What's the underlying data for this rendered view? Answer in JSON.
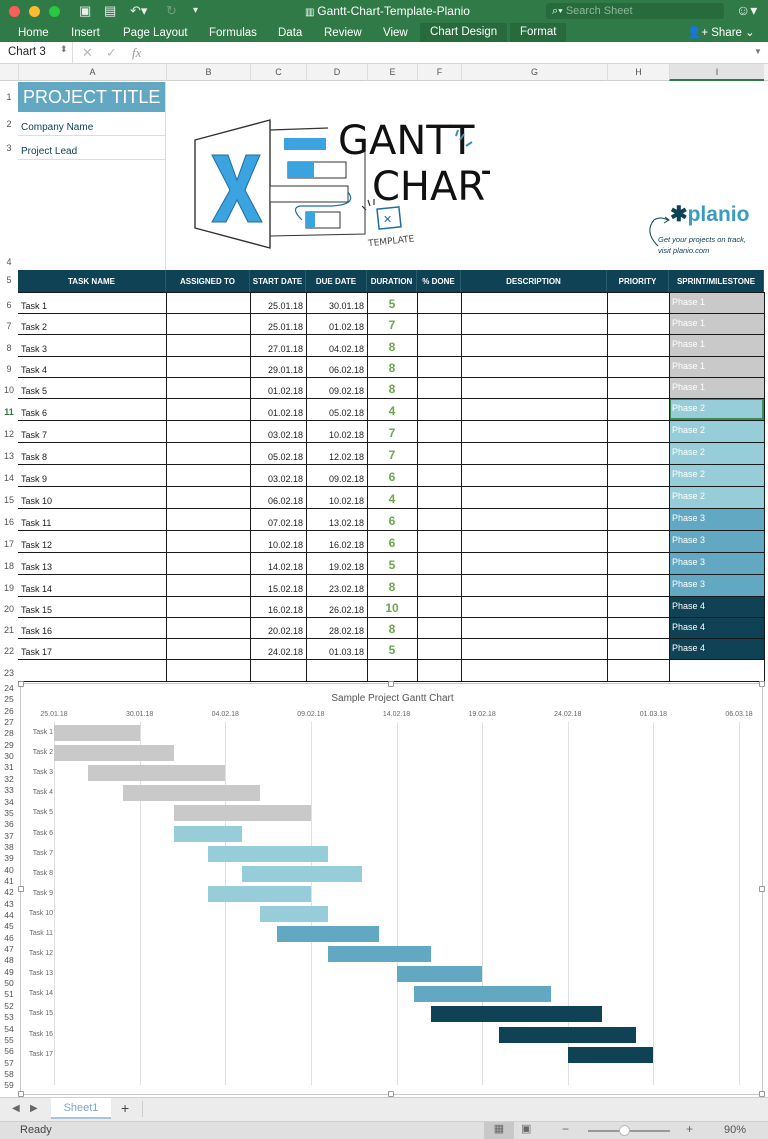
{
  "window": {
    "title": "Gantt-Chart-Template-Planio",
    "search_placeholder": "Search Sheet",
    "share_label": "Share"
  },
  "ribbon": {
    "tabs": [
      "Home",
      "Insert",
      "Page Layout",
      "Formulas",
      "Data",
      "Review",
      "View",
      "Chart Design",
      "Format"
    ],
    "active_tab": "Chart Design"
  },
  "formula_bar": {
    "name_box": "Chart 3",
    "fx": "fx",
    "value": ""
  },
  "columns": [
    "A",
    "B",
    "C",
    "D",
    "E",
    "F",
    "G",
    "H",
    "I"
  ],
  "header": {
    "project_title": "PROJECT TITLE",
    "company_name": "Company Name",
    "project_lead": "Project Lead",
    "logo_gantt": "GANTT",
    "logo_chart": "CHART",
    "logo_template": "TEMPLATE",
    "planio_brand": "planio",
    "planio_tagline1": "Get your projects on track,",
    "planio_tagline2": "visit planio.com"
  },
  "table": {
    "headers": [
      "TASK NAME",
      "ASSIGNED TO",
      "START DATE",
      "DUE DATE",
      "DURATION",
      "% DONE",
      "DESCRIPTION",
      "PRIORITY",
      "SPRINT/MILESTONE"
    ],
    "rows": [
      {
        "task": "Task 1",
        "start": "25.01.18",
        "due": "30.01.18",
        "duration": "5",
        "phase": "Phase 1"
      },
      {
        "task": "Task 2",
        "start": "25.01.18",
        "due": "01.02.18",
        "duration": "7",
        "phase": "Phase 1"
      },
      {
        "task": "Task 3",
        "start": "27.01.18",
        "due": "04.02.18",
        "duration": "8",
        "phase": "Phase 1"
      },
      {
        "task": "Task 4",
        "start": "29.01.18",
        "due": "06.02.18",
        "duration": "8",
        "phase": "Phase 1"
      },
      {
        "task": "Task 5",
        "start": "01.02.18",
        "due": "09.02.18",
        "duration": "8",
        "phase": "Phase 1"
      },
      {
        "task": "Task 6",
        "start": "01.02.18",
        "due": "05.02.18",
        "duration": "4",
        "phase": "Phase 2"
      },
      {
        "task": "Task 7",
        "start": "03.02.18",
        "due": "10.02.18",
        "duration": "7",
        "phase": "Phase 2"
      },
      {
        "task": "Task 8",
        "start": "05.02.18",
        "due": "12.02.18",
        "duration": "7",
        "phase": "Phase 2"
      },
      {
        "task": "Task 9",
        "start": "03.02.18",
        "due": "09.02.18",
        "duration": "6",
        "phase": "Phase 2"
      },
      {
        "task": "Task 10",
        "start": "06.02.18",
        "due": "10.02.18",
        "duration": "4",
        "phase": "Phase 2"
      },
      {
        "task": "Task 11",
        "start": "07.02.18",
        "due": "13.02.18",
        "duration": "6",
        "phase": "Phase 3"
      },
      {
        "task": "Task 12",
        "start": "10.02.18",
        "due": "16.02.18",
        "duration": "6",
        "phase": "Phase 3"
      },
      {
        "task": "Task 13",
        "start": "14.02.18",
        "due": "19.02.18",
        "duration": "5",
        "phase": "Phase 3"
      },
      {
        "task": "Task 14",
        "start": "15.02.18",
        "due": "23.02.18",
        "duration": "8",
        "phase": "Phase 3"
      },
      {
        "task": "Task 15",
        "start": "16.02.18",
        "due": "26.02.18",
        "duration": "10",
        "phase": "Phase 4"
      },
      {
        "task": "Task 16",
        "start": "20.02.18",
        "due": "28.02.18",
        "duration": "8",
        "phase": "Phase 4"
      },
      {
        "task": "Task 17",
        "start": "24.02.18",
        "due": "01.03.18",
        "duration": "5",
        "phase": "Phase 4"
      }
    ]
  },
  "phase_colors": {
    "Phase 1": "#c9c9c9",
    "Phase 2": "#96cdd9",
    "Phase 3": "#62a8c2",
    "Phase 4": "#0f4255"
  },
  "colors": {
    "header_bg": "#0f4255",
    "title_bg": "#62a8c2",
    "accent_green": "#2f7a46",
    "duration_green": "#6aa84f"
  },
  "chart_data": {
    "type": "bar",
    "orientation": "horizontal-gantt",
    "title": "Sample Project Gantt Chart",
    "x_ticks": [
      "25.01.18",
      "30.01.18",
      "04.02.18",
      "09.02.18",
      "14.02.18",
      "19.02.18",
      "24.02.18",
      "01.03.18",
      "06.03.18"
    ],
    "xlim_days": [
      0,
      40
    ],
    "categories": [
      "Task 1",
      "Task 2",
      "Task 3",
      "Task 4",
      "Task 5",
      "Task 6",
      "Task 7",
      "Task 8",
      "Task 9",
      "Task 10",
      "Task 11",
      "Task 12",
      "Task 13",
      "Task 14",
      "Task 15",
      "Task 16",
      "Task 17"
    ],
    "start_offset_days": [
      0,
      0,
      2,
      4,
      7,
      7,
      9,
      11,
      9,
      12,
      13,
      16,
      20,
      21,
      22,
      26,
      30
    ],
    "duration_days": [
      5,
      7,
      8,
      8,
      8,
      4,
      7,
      7,
      6,
      4,
      6,
      6,
      5,
      8,
      10,
      8,
      5
    ],
    "phases": [
      "Phase 1",
      "Phase 1",
      "Phase 1",
      "Phase 1",
      "Phase 1",
      "Phase 2",
      "Phase 2",
      "Phase 2",
      "Phase 2",
      "Phase 2",
      "Phase 3",
      "Phase 3",
      "Phase 3",
      "Phase 3",
      "Phase 4",
      "Phase 4",
      "Phase 4"
    ],
    "grid": true,
    "legend": "none"
  },
  "sheet_tabs": {
    "active": "Sheet1",
    "add": "+"
  },
  "status_bar": {
    "status": "Ready",
    "zoom": "90%"
  }
}
